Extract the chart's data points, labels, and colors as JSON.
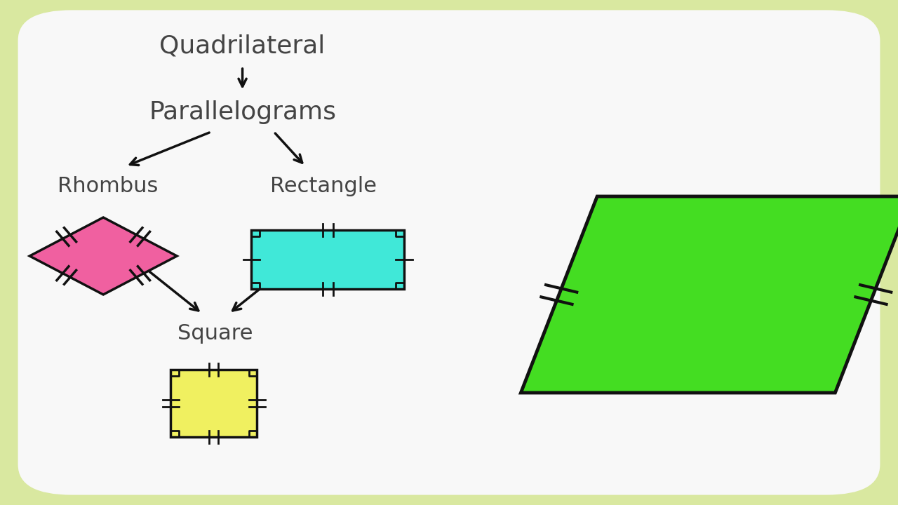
{
  "bg_outer": "#d9e8a0",
  "bg_inner": "#f8f8f8",
  "text_color": "#444444",
  "title_font_size": 26,
  "label_font_size": 22,
  "arrow_color": "#111111",
  "rhombus_color": "#f060a0",
  "rectangle_color": "#40e8d8",
  "square_color": "#f0f060",
  "parallelogram_color": "#44dd22",
  "shape_edge_color": "#111111",
  "shape_linewidth": 2.5,
  "quad_text": "Quadrilateral",
  "para_text": "Parallelograms",
  "rhombus_text": "Rhombus",
  "rectangle_text": "Rectangle",
  "square_text": "Square"
}
